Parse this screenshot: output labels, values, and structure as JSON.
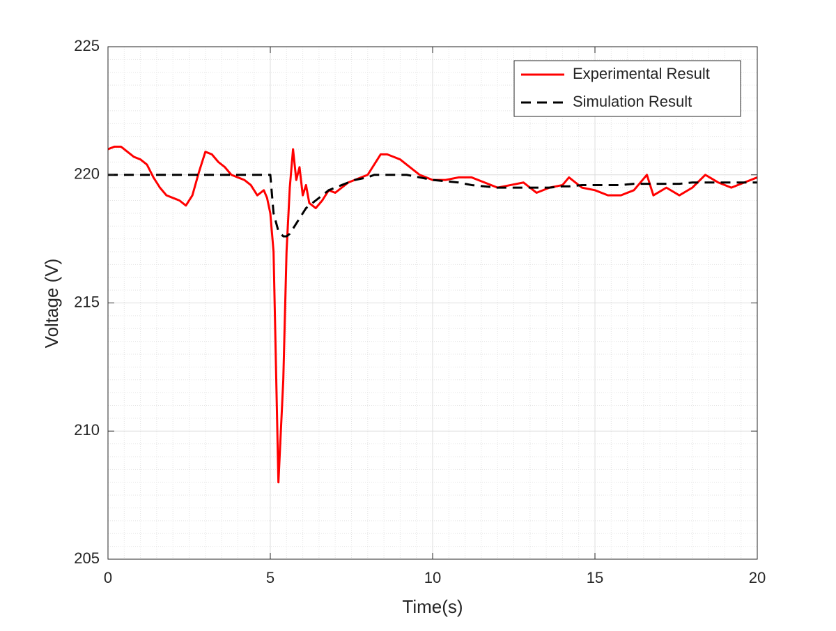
{
  "chart_data": {
    "type": "line",
    "xlabel": "Time(s)",
    "ylabel": "Voltage (V)",
    "x": [
      0,
      0.2,
      0.4,
      0.6,
      0.8,
      1.0,
      1.2,
      1.4,
      1.6,
      1.8,
      2.0,
      2.2,
      2.4,
      2.6,
      2.8,
      3.0,
      3.2,
      3.4,
      3.6,
      3.8,
      4.0,
      4.2,
      4.4,
      4.6,
      4.8,
      4.9,
      5.0,
      5.1,
      5.25,
      5.4,
      5.5,
      5.6,
      5.7,
      5.8,
      5.9,
      6.0,
      6.1,
      6.2,
      6.4,
      6.6,
      6.8,
      7.0,
      7.2,
      7.4,
      7.6,
      7.8,
      8.0,
      8.2,
      8.4,
      8.6,
      8.8,
      9.0,
      9.2,
      9.4,
      9.6,
      9.8,
      10.0,
      10.4,
      10.8,
      11.2,
      11.6,
      12.0,
      12.4,
      12.8,
      13.2,
      13.6,
      14.0,
      14.2,
      14.6,
      15.0,
      15.4,
      15.8,
      16.2,
      16.6,
      16.8,
      17.2,
      17.6,
      18.0,
      18.4,
      18.8,
      19.2,
      19.6,
      20.0
    ],
    "series": [
      {
        "name": "Experimental Result",
        "color": "#ff0000",
        "dash": "solid",
        "values": [
          221.0,
          221.1,
          221.1,
          220.9,
          220.7,
          220.6,
          220.4,
          219.9,
          219.5,
          219.2,
          219.1,
          219.0,
          218.8,
          219.2,
          220.1,
          220.9,
          220.8,
          220.5,
          220.3,
          220.0,
          219.9,
          219.8,
          219.6,
          219.2,
          219.4,
          219.1,
          218.5,
          217.0,
          208.0,
          212.0,
          217.0,
          219.5,
          221.0,
          219.8,
          220.3,
          219.2,
          219.6,
          218.9,
          218.7,
          219.0,
          219.4,
          219.3,
          219.5,
          219.7,
          219.8,
          219.9,
          220.0,
          220.4,
          220.8,
          220.8,
          220.7,
          220.6,
          220.4,
          220.2,
          220.0,
          219.9,
          219.8,
          219.8,
          219.9,
          219.9,
          219.7,
          219.5,
          219.6,
          219.7,
          219.3,
          219.5,
          219.6,
          219.9,
          219.5,
          219.4,
          219.2,
          219.2,
          219.4,
          220.0,
          219.2,
          219.5,
          219.2,
          219.5,
          220.0,
          219.7,
          219.5,
          219.7,
          219.9
        ]
      },
      {
        "name": "Simulation Result",
        "color": "#000000",
        "dash": "dashed",
        "values": [
          220,
          220,
          220,
          220,
          220,
          220,
          220,
          220,
          220,
          220,
          220,
          220,
          220,
          220,
          220,
          220,
          220,
          220,
          220,
          220,
          220,
          220,
          220,
          220,
          220,
          220,
          220,
          218.5,
          217.8,
          217.6,
          217.6,
          217.7,
          217.9,
          218.1,
          218.3,
          218.5,
          218.7,
          218.8,
          219.0,
          219.2,
          219.4,
          219.5,
          219.6,
          219.7,
          219.8,
          219.85,
          219.9,
          220.0,
          220.0,
          220.0,
          220.0,
          220.0,
          220.0,
          219.95,
          219.9,
          219.85,
          219.8,
          219.75,
          219.7,
          219.6,
          219.55,
          219.5,
          219.5,
          219.5,
          219.5,
          219.5,
          219.55,
          219.55,
          219.6,
          219.6,
          219.6,
          219.6,
          219.65,
          219.65,
          219.65,
          219.65,
          219.65,
          219.7,
          219.7,
          219.7,
          219.7,
          219.7,
          219.7
        ]
      }
    ],
    "xlim": [
      0,
      20
    ],
    "xticks": [
      0,
      5,
      10,
      15,
      20
    ],
    "ylim": [
      205,
      225
    ],
    "yticks": [
      205,
      210,
      215,
      220,
      225
    ],
    "grid": true,
    "minor_grid": true,
    "legend": "upper right"
  }
}
